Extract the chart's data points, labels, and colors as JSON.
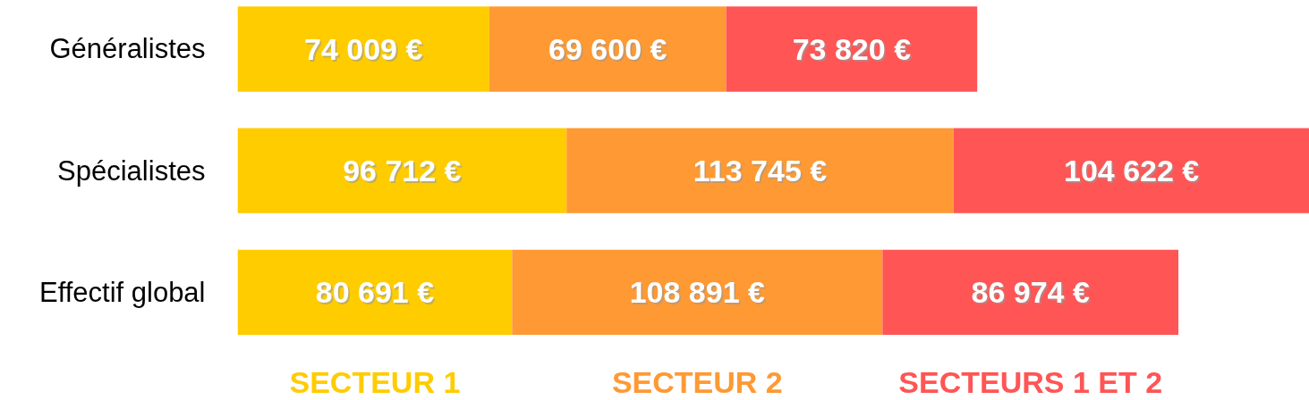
{
  "chart_data": {
    "type": "bar",
    "orientation": "horizontal",
    "stacked": true,
    "categories": [
      "Généralistes",
      "Spécialistes",
      "Effectif global"
    ],
    "series": [
      {
        "name": "SECTEUR 1",
        "color": "#ffcc00",
        "values": [
          74009,
          96712,
          80691
        ],
        "value_labels": [
          "74 009 €",
          "96 712 €",
          "80 691 €"
        ]
      },
      {
        "name": "SECTEUR 2",
        "color": "#ff9933",
        "values": [
          69600,
          113745,
          108891
        ],
        "value_labels": [
          "69 600 €",
          "113 745 €",
          "108 891 €"
        ]
      },
      {
        "name": "SECTEURS 1 ET 2",
        "color": "#ff5555",
        "values": [
          73820,
          104622,
          86974
        ],
        "value_labels": [
          "73 820 €",
          "104 622 €",
          "86 974 €"
        ]
      }
    ],
    "grid": false
  }
}
